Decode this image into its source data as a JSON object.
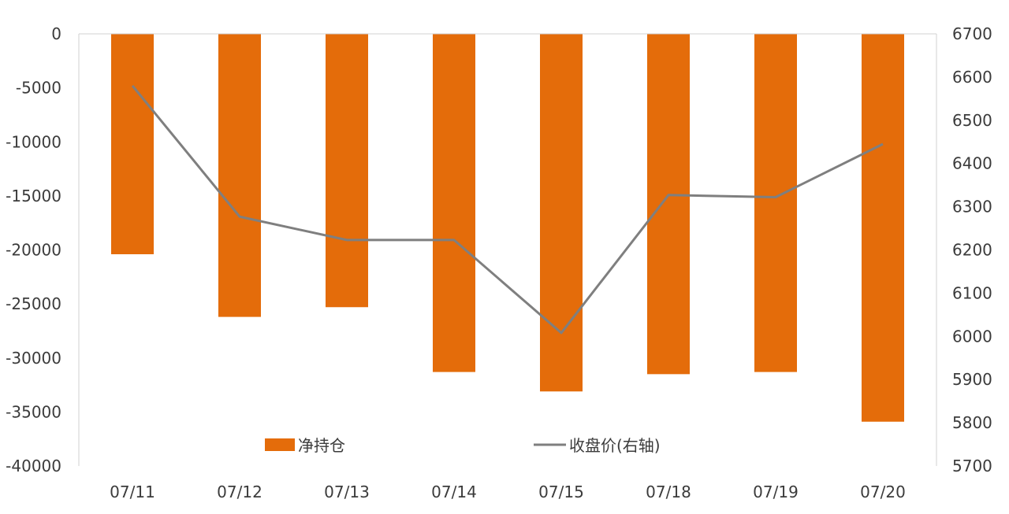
{
  "chart_data": {
    "type": "bar",
    "categories": [
      "07/11",
      "07/12",
      "07/13",
      "07/14",
      "07/15",
      "07/18",
      "07/19",
      "07/20"
    ],
    "series": [
      {
        "name": "净持仓",
        "type": "bar",
        "axis": "left",
        "color": "#e46c0a",
        "values": [
          -20400,
          -26200,
          -25300,
          -31300,
          -33100,
          -31500,
          -31300,
          -35900
        ]
      },
      {
        "name": "收盘价(右轴)",
        "type": "line",
        "axis": "right",
        "color": "#7f7f7f",
        "values": [
          6580,
          6277,
          6223,
          6223,
          6008,
          6327,
          6322,
          6445
        ]
      }
    ],
    "y_left": {
      "lim": [
        -40000,
        0
      ],
      "ticks": [
        0,
        -5000,
        -10000,
        -15000,
        -20000,
        -25000,
        -30000,
        -35000,
        -40000
      ]
    },
    "y_right": {
      "lim": [
        5700,
        6700
      ],
      "ticks": [
        6700,
        6600,
        6500,
        6400,
        6300,
        6200,
        6100,
        6000,
        5900,
        5800,
        5700
      ]
    },
    "legend": "inside-bottom",
    "grid": false
  }
}
